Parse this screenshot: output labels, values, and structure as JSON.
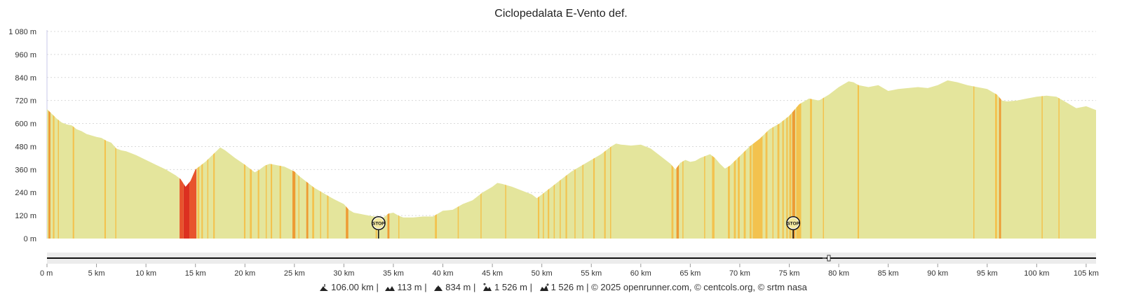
{
  "chart_data": {
    "type": "area",
    "title": "Ciclopedalata E-Vento def.",
    "xlabel": "",
    "ylabel": "",
    "x_unit": "km",
    "y_unit": "m",
    "xlim": [
      0,
      106
    ],
    "ylim": [
      0,
      1080
    ],
    "grid": true,
    "x_ticks": [
      "0 m",
      "5 km",
      "10 km",
      "15 km",
      "20 km",
      "25 km",
      "30 km",
      "35 km",
      "40 km",
      "45 km",
      "50 km",
      "55 km",
      "60 km",
      "65 km",
      "70 km",
      "75 km",
      "80 km",
      "85 km",
      "90 km",
      "95 km",
      "100 km",
      "105 km"
    ],
    "y_ticks": [
      "0 m",
      "120 m",
      "240 m",
      "360 m",
      "480 m",
      "600 m",
      "720 m",
      "840 m",
      "960 m",
      "1 080 m"
    ],
    "x_tick_values": [
      0,
      5,
      10,
      15,
      20,
      25,
      30,
      35,
      40,
      45,
      50,
      55,
      60,
      65,
      70,
      75,
      80,
      85,
      90,
      95,
      100,
      105
    ],
    "y_tick_values": [
      0,
      120,
      240,
      360,
      480,
      600,
      720,
      840,
      960,
      1080
    ],
    "profile": [
      [
        0,
        675
      ],
      [
        0.5,
        650
      ],
      [
        1,
        625
      ],
      [
        1.5,
        605
      ],
      [
        2,
        595
      ],
      [
        2.5,
        590
      ],
      [
        3,
        570
      ],
      [
        3.5,
        560
      ],
      [
        4,
        545
      ],
      [
        5,
        530
      ],
      [
        5.5,
        525
      ],
      [
        6,
        510
      ],
      [
        6.5,
        500
      ],
      [
        7,
        470
      ],
      [
        7.5,
        460
      ],
      [
        8,
        455
      ],
      [
        8.5,
        445
      ],
      [
        9,
        435
      ],
      [
        10,
        410
      ],
      [
        11,
        385
      ],
      [
        12,
        360
      ],
      [
        13,
        330
      ],
      [
        13.5,
        310
      ],
      [
        14,
        270
      ],
      [
        14.5,
        300
      ],
      [
        15,
        360
      ],
      [
        16,
        400
      ],
      [
        17,
        450
      ],
      [
        17.5,
        475
      ],
      [
        18,
        460
      ],
      [
        19,
        420
      ],
      [
        20,
        385
      ],
      [
        20.5,
        365
      ],
      [
        21,
        345
      ],
      [
        21.5,
        360
      ],
      [
        22,
        380
      ],
      [
        22.5,
        390
      ],
      [
        23,
        385
      ],
      [
        24,
        375
      ],
      [
        25,
        350
      ],
      [
        25.5,
        325
      ],
      [
        26,
        305
      ],
      [
        27,
        265
      ],
      [
        28,
        235
      ],
      [
        28.5,
        220
      ],
      [
        29,
        205
      ],
      [
        30,
        180
      ],
      [
        30.5,
        150
      ],
      [
        31,
        135
      ],
      [
        32,
        125
      ],
      [
        33,
        115
      ],
      [
        34,
        110
      ],
      [
        34.5,
        130
      ],
      [
        35,
        135
      ],
      [
        35.5,
        120
      ],
      [
        36,
        110
      ],
      [
        37,
        110
      ],
      [
        38,
        115
      ],
      [
        39,
        115
      ],
      [
        40,
        145
      ],
      [
        41,
        150
      ],
      [
        42,
        180
      ],
      [
        43,
        200
      ],
      [
        44,
        240
      ],
      [
        45,
        270
      ],
      [
        45.5,
        290
      ],
      [
        46,
        285
      ],
      [
        47,
        270
      ],
      [
        48,
        250
      ],
      [
        49,
        230
      ],
      [
        49.5,
        210
      ],
      [
        50,
        230
      ],
      [
        51,
        270
      ],
      [
        52,
        310
      ],
      [
        53,
        350
      ],
      [
        54,
        380
      ],
      [
        55,
        410
      ],
      [
        56,
        440
      ],
      [
        57,
        480
      ],
      [
        57.5,
        495
      ],
      [
        58,
        490
      ],
      [
        59,
        485
      ],
      [
        60,
        490
      ],
      [
        61,
        470
      ],
      [
        62,
        430
      ],
      [
        63,
        390
      ],
      [
        63.5,
        360
      ],
      [
        64,
        395
      ],
      [
        64.5,
        410
      ],
      [
        65,
        400
      ],
      [
        65.5,
        405
      ],
      [
        66,
        420
      ],
      [
        67,
        440
      ],
      [
        67.5,
        420
      ],
      [
        68,
        390
      ],
      [
        68.5,
        365
      ],
      [
        69,
        380
      ],
      [
        70,
        430
      ],
      [
        71,
        480
      ],
      [
        72,
        520
      ],
      [
        73,
        570
      ],
      [
        74,
        600
      ],
      [
        75,
        640
      ],
      [
        76,
        700
      ],
      [
        77,
        730
      ],
      [
        78,
        720
      ],
      [
        79,
        750
      ],
      [
        80,
        790
      ],
      [
        81,
        820
      ],
      [
        81.5,
        815
      ],
      [
        82,
        800
      ],
      [
        83,
        790
      ],
      [
        84,
        800
      ],
      [
        85,
        770
      ],
      [
        86,
        780
      ],
      [
        87,
        785
      ],
      [
        88,
        790
      ],
      [
        89,
        785
      ],
      [
        90,
        800
      ],
      [
        91,
        825
      ],
      [
        92,
        815
      ],
      [
        93,
        800
      ],
      [
        94,
        790
      ],
      [
        95,
        780
      ],
      [
        96,
        750
      ],
      [
        96.5,
        720
      ],
      [
        97,
        715
      ],
      [
        98,
        720
      ],
      [
        99,
        730
      ],
      [
        100,
        740
      ],
      [
        101,
        745
      ],
      [
        102,
        740
      ],
      [
        103,
        710
      ],
      [
        104,
        680
      ],
      [
        105,
        690
      ],
      [
        106,
        670
      ]
    ],
    "gradient_bands": [
      [
        0.15,
        0.35,
        "hard"
      ],
      [
        0.6,
        0.75,
        "medium"
      ],
      [
        1.1,
        1.2,
        "medium"
      ],
      [
        2.6,
        2.75,
        "medium"
      ],
      [
        5.8,
        5.95,
        "medium"
      ],
      [
        6.9,
        7.0,
        "medium"
      ],
      [
        13.4,
        13.8,
        "steep"
      ],
      [
        13.8,
        14.4,
        "extreme"
      ],
      [
        14.4,
        15.1,
        "steep"
      ],
      [
        15.2,
        15.4,
        "medium"
      ],
      [
        15.6,
        15.75,
        "medium"
      ],
      [
        16.2,
        16.3,
        "medium"
      ],
      [
        16.8,
        16.95,
        "medium"
      ],
      [
        19.9,
        20.05,
        "medium"
      ],
      [
        20.5,
        20.7,
        "medium"
      ],
      [
        21.3,
        21.45,
        "medium"
      ],
      [
        22.1,
        22.2,
        "medium"
      ],
      [
        22.6,
        22.75,
        "medium"
      ],
      [
        23.5,
        23.65,
        "medium"
      ],
      [
        24.8,
        25.1,
        "hard"
      ],
      [
        25.4,
        25.5,
        "medium"
      ],
      [
        26.2,
        26.4,
        "hard"
      ],
      [
        26.8,
        27.0,
        "medium"
      ],
      [
        27.6,
        27.7,
        "medium"
      ],
      [
        28.3,
        28.45,
        "medium"
      ],
      [
        30.2,
        30.45,
        "hard"
      ],
      [
        33.2,
        33.35,
        "medium"
      ],
      [
        34.4,
        34.6,
        "hard"
      ],
      [
        35.5,
        35.6,
        "medium"
      ],
      [
        39.2,
        39.4,
        "medium"
      ],
      [
        41.5,
        41.6,
        "medium"
      ],
      [
        43.8,
        43.9,
        "medium"
      ],
      [
        46.3,
        46.4,
        "medium"
      ],
      [
        49.6,
        49.75,
        "medium"
      ],
      [
        50.1,
        50.2,
        "medium"
      ],
      [
        50.6,
        50.75,
        "medium"
      ],
      [
        51.2,
        51.3,
        "medium"
      ],
      [
        51.8,
        51.9,
        "medium"
      ],
      [
        52.4,
        52.55,
        "medium"
      ],
      [
        53.3,
        53.4,
        "medium"
      ],
      [
        54.1,
        54.2,
        "medium"
      ],
      [
        55.2,
        55.35,
        "medium"
      ],
      [
        56.3,
        56.45,
        "medium"
      ],
      [
        56.9,
        57.0,
        "medium"
      ],
      [
        63.1,
        63.3,
        "medium"
      ],
      [
        63.6,
        63.85,
        "hard"
      ],
      [
        64.2,
        64.3,
        "medium"
      ],
      [
        66.4,
        66.5,
        "medium"
      ],
      [
        67.2,
        67.45,
        "medium"
      ],
      [
        68.8,
        69.0,
        "medium"
      ],
      [
        69.4,
        69.6,
        "medium"
      ],
      [
        69.8,
        70.0,
        "medium"
      ],
      [
        70.4,
        70.6,
        "medium"
      ],
      [
        71.0,
        71.2,
        "medium"
      ],
      [
        71.3,
        72.3,
        "medium"
      ],
      [
        72.6,
        72.8,
        "medium"
      ],
      [
        73.3,
        73.4,
        "medium"
      ],
      [
        73.8,
        74.0,
        "medium"
      ],
      [
        74.3,
        74.45,
        "medium"
      ],
      [
        74.7,
        74.85,
        "medium"
      ],
      [
        75.0,
        75.2,
        "medium"
      ],
      [
        75.3,
        75.6,
        "hard"
      ],
      [
        75.7,
        76.2,
        "medium"
      ],
      [
        77.1,
        77.3,
        "medium"
      ],
      [
        78.4,
        78.5,
        "medium"
      ],
      [
        81.9,
        82.05,
        "medium"
      ],
      [
        96.2,
        96.4,
        "hard"
      ],
      [
        95.8,
        96.0,
        "medium"
      ],
      [
        93.6,
        93.7,
        "medium"
      ],
      [
        100.5,
        100.6,
        "medium"
      ],
      [
        102.2,
        102.3,
        "medium"
      ]
    ],
    "markers": [
      {
        "label": "STOP",
        "x": 33.5
      },
      {
        "label": "STOP",
        "x": 75.4
      }
    ],
    "range_selector_handle": 79
  },
  "colors": {
    "fill_base": "#e4e59c",
    "medium": "#f3c24e",
    "hard": "#ee9b34",
    "steep": "#e8532d",
    "extreme": "#dc3020",
    "grid": "#d9d9d9",
    "axis": "#c8c8ea"
  },
  "footer": {
    "distance": "106.00 km |",
    "elev_min": "113 m |",
    "elev_max": "834 m |",
    "ascent": "1 526 m |",
    "descent": "1 526 m | © 2025 openrunner.com, © centcols.org, © srtm nasa",
    "icons": [
      "climb-icon",
      "elevation-min-icon",
      "elevation-max-icon",
      "ascent-icon",
      "descent-icon"
    ]
  }
}
